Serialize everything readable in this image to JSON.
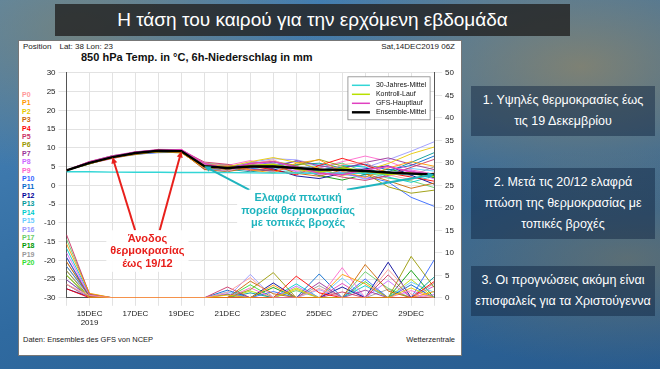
{
  "slide_title": "Η τάση του καιρού για την ερχόμενη εβδομάδα",
  "notes": [
    "1. Υψηλές θερμοκρασίες έως τις 19 Δεκεμβρίου",
    "2. Μετά τις 20/12 ελαφρά πτώση της θερμοκρασίας με τοπικές βροχές",
    "3. Οι προγνώσεις ακόμη είναι επισφαλείς για τα Χριστούγεννα"
  ],
  "chart_data": {
    "type": "line",
    "title": "850 hPa Temp. in °C, 6h-Niederschlag in mm",
    "location_label": "Position",
    "location": "Lat: 38 Lon: 23",
    "run": "Sat,14DEC2019 06Z",
    "source": "Daten: Ensembles des GFS von NCEP",
    "credit": "Wetterzentrale",
    "year_label": "2019",
    "categories": [
      null,
      "15DEC",
      null,
      "17DEC",
      null,
      "19DEC",
      null,
      "21DEC",
      null,
      "23DEC",
      null,
      "25DEC",
      null,
      "27DEC",
      null,
      "29DEC",
      null
    ],
    "ylim": [
      -30,
      30
    ],
    "yticks": [
      -30,
      -25,
      -20,
      -15,
      -10,
      -5,
      0,
      5,
      10,
      15,
      20,
      25,
      30
    ],
    "y2lim": [
      0,
      50
    ],
    "y2ticks": [
      0,
      5,
      10,
      15,
      20,
      25,
      30,
      35,
      40,
      45,
      50
    ],
    "grid": true,
    "legend": "upper right",
    "series": [
      {
        "name": "30-Jahres-Mittel",
        "color": "#33d6d6",
        "line_style": "medium",
        "values": [
          3.6,
          3.6,
          3.5,
          3.5,
          3.5,
          3.4,
          3.4,
          3.4,
          3.3,
          3.3,
          3.3,
          3.2,
          3.2,
          3.2,
          3.1,
          3.1,
          3.1
        ]
      },
      {
        "name": "Kontroll-Lauf",
        "color": "#b8e000",
        "line_style": "medium",
        "values": [
          4,
          6.0,
          7.5,
          8.6,
          9.2,
          9.2,
          5.2,
          4.7,
          5.3,
          5.6,
          4.3,
          3.5,
          4.6,
          3.8,
          2.9,
          3.4,
          2.4
        ],
        "precipitation": [
          7,
          0.3,
          0,
          0,
          0,
          0,
          0,
          0,
          1.5,
          0,
          2.2,
          0,
          0,
          0,
          0,
          4.1,
          0
        ]
      },
      {
        "name": "GFS-Hauptlauf",
        "color": "#e040c0",
        "line_style": "medium",
        "values": [
          4,
          6.3,
          7.8,
          8.9,
          9.4,
          9.5,
          5.8,
          4.4,
          5.8,
          6.3,
          4.9,
          3.2,
          2.8,
          4.1,
          5.0,
          3.6,
          2.9
        ],
        "precipitation": [
          9,
          0.5,
          0,
          0,
          0,
          0,
          0,
          0.7,
          0,
          0,
          0,
          0,
          3.2,
          0,
          0,
          0,
          2.6
        ]
      },
      {
        "name": "Ensemble-Mittel",
        "color": "#000000",
        "line_style": "thick",
        "values": [
          4,
          6.0,
          7.5,
          8.6,
          9.2,
          9.1,
          5.1,
          4.6,
          5.0,
          5.0,
          4.6,
          4.2,
          4.1,
          3.8,
          3.4,
          3.1,
          2.9
        ]
      }
    ],
    "members": [
      {
        "name": "P0",
        "color": "#ff9999",
        "values": [
          4,
          6.2,
          7.6,
          8.8,
          9.4,
          9.6,
          5.5,
          3.8,
          5.6,
          6.8,
          4.2,
          3.1,
          5.5,
          6.2,
          2.8,
          1.5,
          3.4
        ],
        "precipitation": [
          3,
          0.5,
          0,
          0,
          0,
          0,
          0,
          1.2,
          4.5,
          0,
          0,
          2.1,
          0,
          0,
          6.3,
          0.8,
          0
        ]
      },
      {
        "name": "P1",
        "color": "#ff9900",
        "values": [
          4,
          5.8,
          7.2,
          8.3,
          9.1,
          8.7,
          4.6,
          5.2,
          4.1,
          3.3,
          5.9,
          6.8,
          3.7,
          2.1,
          4.6,
          6.3,
          5.1
        ],
        "precipitation": [
          12,
          1,
          0,
          0,
          0,
          0,
          0,
          0,
          0,
          2.8,
          0,
          0,
          5.2,
          3.1,
          0,
          0,
          1.4
        ]
      },
      {
        "name": "P2",
        "color": "#e6c800",
        "values": [
          4,
          6.1,
          7.8,
          8.6,
          8.8,
          9.3,
          5.8,
          4.9,
          6.3,
          7.4,
          6.1,
          4.5,
          2.6,
          3.9,
          5.8,
          8.4,
          10.2
        ],
        "precipitation": [
          5,
          0,
          0,
          0,
          0,
          0,
          0,
          0.6,
          0,
          0,
          1.9,
          0,
          0,
          0,
          0,
          2.2,
          0
        ]
      },
      {
        "name": "P3",
        "color": "#cc6600",
        "values": [
          4,
          5.9,
          7.4,
          8.9,
          9.2,
          8.9,
          4.2,
          3.6,
          4.8,
          5.5,
          3.2,
          2.4,
          4.1,
          3.1,
          1.2,
          -0.8,
          0.6
        ],
        "precipitation": [
          8,
          0.3,
          0,
          0,
          0,
          0,
          0,
          0,
          3.7,
          0.9,
          0,
          0,
          0,
          7.4,
          1.5,
          0,
          0
        ]
      },
      {
        "name": "P4",
        "color": "#ff0000",
        "values": [
          4,
          6.3,
          7.7,
          8.4,
          9.5,
          9.1,
          5.1,
          4.4,
          5.2,
          4.1,
          2.8,
          5.3,
          7.2,
          5.4,
          3.3,
          2.2,
          1.1
        ],
        "precipitation": [
          2,
          0,
          0,
          0,
          0,
          0,
          0,
          0,
          0,
          0,
          4.8,
          1.1,
          0,
          0,
          0,
          0,
          3.6
        ]
      },
      {
        "name": "P5",
        "color": "#cc3366",
        "values": [
          4,
          6.0,
          7.3,
          8.7,
          8.9,
          9.4,
          6.2,
          5.6,
          4.3,
          3.8,
          4.9,
          3.6,
          2.2,
          1.3,
          2.6,
          4.8,
          6.9
        ],
        "precipitation": [
          14,
          0.8,
          0,
          0,
          0,
          0,
          0,
          2.4,
          0,
          0,
          0,
          0,
          1.3,
          0,
          5.1,
          0,
          0
        ]
      },
      {
        "name": "P6",
        "color": "#999900",
        "values": [
          4,
          5.7,
          7.5,
          8.2,
          9.0,
          8.6,
          4.8,
          4.1,
          5.9,
          6.4,
          5.3,
          6.9,
          5.1,
          3.2,
          -0.4,
          -2.1,
          -1.3
        ],
        "precipitation": [
          6,
          0,
          0,
          0,
          0,
          0,
          0,
          0,
          1.8,
          5.6,
          0,
          0,
          0,
          0,
          0,
          9.2,
          2.3
        ]
      },
      {
        "name": "P7",
        "color": "#993399",
        "values": [
          4,
          6.2,
          7.9,
          8.5,
          9.3,
          9.2,
          5.3,
          5.0,
          3.9,
          4.6,
          6.6,
          5.2,
          4.4,
          6.1,
          7.3,
          5.6,
          4.2
        ],
        "precipitation": [
          4,
          0.2,
          0,
          0,
          0,
          0,
          0,
          0,
          0,
          0,
          0,
          3.4,
          0,
          1.7,
          0,
          0,
          0
        ]
      },
      {
        "name": "P8",
        "color": "#cc66ff",
        "values": [
          4,
          5.8,
          7.1,
          8.6,
          9.0,
          9.0,
          4.5,
          3.7,
          5.4,
          5.9,
          3.6,
          2.9,
          3.5,
          1.8,
          2.4,
          3.9,
          1.7
        ],
        "precipitation": [
          10,
          0.6,
          0,
          0,
          0,
          0,
          0,
          0.9,
          0,
          0,
          2.6,
          0,
          0,
          0,
          3.8,
          0,
          0.7
        ]
      },
      {
        "name": "P9",
        "color": "#ff66cc",
        "values": [
          4,
          6.1,
          7.6,
          8.8,
          9.6,
          9.5,
          5.7,
          5.3,
          6.6,
          4.9,
          3.8,
          4.6,
          6.3,
          7.8,
          6.4,
          4.1,
          3.0
        ],
        "precipitation": [
          3,
          0,
          0,
          0,
          0,
          0,
          0,
          0,
          2.2,
          0,
          0,
          0,
          6.7,
          0,
          0,
          1.6,
          0
        ]
      },
      {
        "name": "P10",
        "color": "#3366ff",
        "values": [
          4,
          5.9,
          7.4,
          8.3,
          8.7,
          8.8,
          4.4,
          4.6,
          4.4,
          5.3,
          6.4,
          4.1,
          2.9,
          2.4,
          0.9,
          -3.2,
          -5.6
        ],
        "precipitation": [
          7,
          0.4,
          0,
          0,
          0,
          0,
          0,
          0,
          0,
          1.4,
          0,
          0,
          0,
          4.2,
          0,
          0,
          8.4
        ]
      },
      {
        "name": "P11",
        "color": "#0066cc",
        "values": [
          4,
          6.0,
          7.7,
          8.5,
          9.2,
          9.3,
          5.0,
          4.0,
          5.1,
          6.2,
          5.0,
          3.3,
          4.8,
          5.6,
          4.1,
          5.3,
          7.8
        ],
        "precipitation": [
          9,
          0,
          0,
          0,
          0,
          0,
          0,
          1.7,
          0,
          0,
          0,
          5.3,
          0,
          0,
          0,
          2.9,
          0
        ]
      },
      {
        "name": "P12",
        "color": "#000099",
        "values": [
          4,
          6.2,
          7.5,
          8.9,
          9.4,
          8.7,
          5.4,
          4.7,
          5.7,
          4.4,
          2.5,
          1.8,
          3.2,
          4.4,
          5.2,
          2.7,
          0.3
        ],
        "precipitation": [
          2,
          0.2,
          0,
          0,
          0,
          0,
          0,
          0,
          0,
          3.3,
          0,
          0,
          2.4,
          0,
          7.9,
          0,
          0
        ]
      },
      {
        "name": "P13",
        "color": "#009999",
        "values": [
          4,
          5.8,
          7.3,
          8.4,
          8.9,
          9.1,
          4.9,
          4.3,
          3.6,
          4.2,
          5.5,
          5.9,
          4.6,
          2.8,
          3.6,
          6.1,
          8.7
        ],
        "precipitation": [
          5,
          0,
          0,
          0,
          0,
          0,
          0,
          0,
          1.1,
          0,
          0,
          0,
          0,
          0,
          0,
          0,
          4.6
        ]
      },
      {
        "name": "P14",
        "color": "#00cccc",
        "values": [
          4,
          6.1,
          7.8,
          8.7,
          9.1,
          9.4,
          5.6,
          5.1,
          5.3,
          5.8,
          4.4,
          3.9,
          5.3,
          4.9,
          2.2,
          0.8,
          2.5
        ],
        "precipitation": [
          11,
          0.7,
          0,
          0,
          0,
          0,
          0,
          0,
          0,
          0,
          3.1,
          0,
          0,
          2.7,
          0,
          0,
          0
        ]
      },
      {
        "name": "P15",
        "color": "#66ccff",
        "values": [
          4,
          5.9,
          7.6,
          8.6,
          9.3,
          8.9,
          4.7,
          3.9,
          4.7,
          3.5,
          4.1,
          5.6,
          3.4,
          1.6,
          3.1,
          4.5,
          3.8
        ],
        "precipitation": [
          4,
          0,
          0,
          0,
          0,
          0,
          0,
          1.3,
          0,
          0,
          0,
          0,
          4.4,
          0,
          0,
          3.5,
          1.2
        ]
      },
      {
        "name": "P16",
        "color": "#9999ff",
        "values": [
          4,
          6.0,
          7.2,
          8.2,
          8.8,
          9.2,
          5.2,
          4.8,
          6.1,
          7.1,
          6.8,
          5.4,
          3.9,
          4.7,
          6.8,
          9.1,
          11.6
        ],
        "precipitation": [
          6,
          0.5,
          0,
          0,
          0,
          0,
          0,
          0,
          5.2,
          0,
          0,
          1.8,
          0,
          0,
          0,
          0,
          0
        ]
      },
      {
        "name": "P17",
        "color": "#66cc66",
        "values": [
          4,
          6.3,
          7.9,
          8.8,
          9.5,
          9.0,
          5.9,
          5.4,
          4.6,
          3.9,
          3.4,
          4.8,
          5.9,
          3.6,
          1.9,
          1.2,
          -0.6
        ],
        "precipitation": [
          13,
          0.9,
          0,
          0,
          0,
          0,
          0,
          0,
          0,
          0,
          1.6,
          0,
          0,
          5.8,
          2.1,
          0,
          0
        ]
      },
      {
        "name": "P18",
        "color": "#009900",
        "values": [
          4,
          5.7,
          7.4,
          8.5,
          9.0,
          9.3,
          4.3,
          4.2,
          5.5,
          5.0,
          4.7,
          2.6,
          1.4,
          2.9,
          4.3,
          3.1,
          2.1
        ],
        "precipitation": [
          3,
          0,
          0,
          0,
          0,
          0,
          0,
          0.8,
          0,
          2.3,
          0,
          0,
          0,
          0,
          0,
          6.1,
          0
        ]
      },
      {
        "name": "P19",
        "color": "#999999",
        "values": [
          4,
          6.1,
          7.6,
          8.7,
          9.2,
          9.1,
          5.5,
          4.5,
          4.9,
          5.6,
          5.2,
          4.3,
          3.8,
          4.0,
          3.4,
          2.6,
          4.9
        ],
        "precipitation": [
          8,
          0.4,
          0,
          0,
          0,
          0,
          0,
          0,
          0,
          0,
          0,
          2.7,
          0,
          0,
          1.9,
          0,
          3.2
        ]
      },
      {
        "name": "P20",
        "color": "#33dd33",
        "values": [
          4,
          5.9,
          7.5,
          8.4,
          9.1,
          9.0,
          5.1,
          4.6,
          5.0,
          4.8,
          4.5,
          3.7,
          4.2,
          3.3,
          2.8,
          3.3,
          2.0
        ],
        "precipitation": [
          5,
          0,
          0,
          0,
          0,
          0,
          0,
          0,
          2.9,
          0,
          0,
          0,
          0,
          3.6,
          0,
          0,
          0
        ]
      }
    ],
    "annotations": [
      {
        "text": [
          "Άνοδος",
          "θερμοκρασίας",
          "έως 19/12"
        ],
        "color": "#e8201c"
      },
      {
        "text": [
          "Ελαφρά πτωτική",
          "πορεία θερμοκρασίας",
          "με τοπικές βροχές"
        ],
        "color": "#1fb4be"
      }
    ]
  }
}
